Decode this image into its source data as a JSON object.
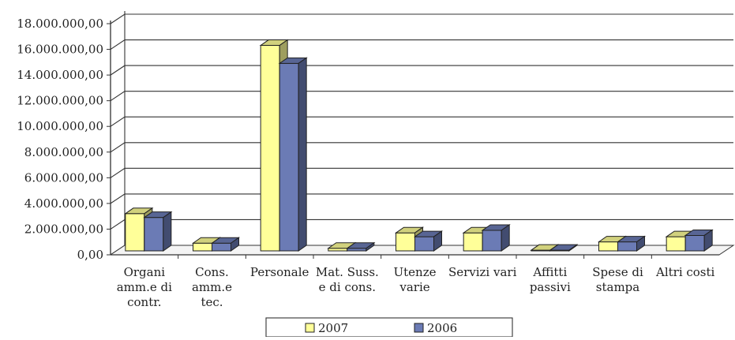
{
  "chart_data": {
    "type": "bar",
    "style": "3d-clustered",
    "categories": [
      [
        "Organi",
        "amm.e di",
        "contr."
      ],
      [
        "Cons.",
        "amm.e",
        "tec."
      ],
      [
        "Personale"
      ],
      [
        "Mat. Suss.",
        "e di cons."
      ],
      [
        "Utenze",
        "varie"
      ],
      [
        "Servizi vari"
      ],
      [
        "Affitti",
        "passivi"
      ],
      [
        "Spese di",
        "stampa"
      ],
      [
        "Altri costi"
      ]
    ],
    "series": [
      {
        "name": "2007",
        "color": "#ffff99",
        "values": [
          2900000,
          600000,
          16000000,
          200000,
          1400000,
          1400000,
          50000,
          700000,
          1100000
        ]
      },
      {
        "name": "2006",
        "color": "#6b7bb5",
        "values": [
          2600000,
          600000,
          14600000,
          200000,
          1100000,
          1600000,
          50000,
          700000,
          1200000
        ]
      }
    ],
    "y_ticks": [
      "0,00",
      "2.000.000,00",
      "4.000.000,00",
      "6.000.000,00",
      "8.000.000,00",
      "10.000.000,00",
      "12.000.000,00",
      "14.000.000,00",
      "16.000.000,00",
      "18.000.000,00"
    ],
    "ylim": [
      0,
      18000000
    ],
    "grid": true,
    "legend_position": "bottom"
  }
}
